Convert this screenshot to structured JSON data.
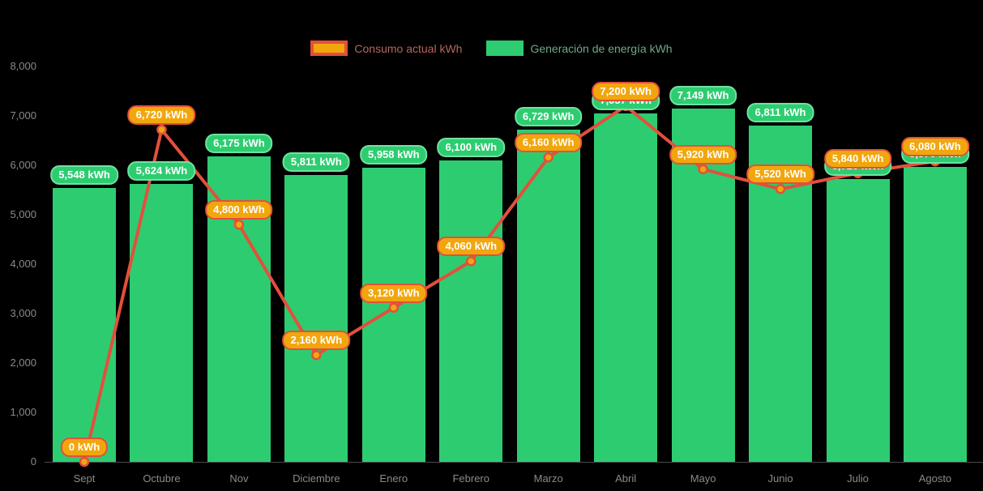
{
  "background": "#000000",
  "axis_text_color": "#8a8a8a",
  "axis_line_color": "#4a4a4a",
  "legend": {
    "items": [
      {
        "label": "Consumo actual kWh",
        "series": "line",
        "swatch_fill": "#f2a60d",
        "swatch_border": "#e2503c",
        "text_color": "#b5675c"
      },
      {
        "label": "Generación de energía kWh",
        "series": "bar",
        "swatch_fill": "#2ecc71",
        "swatch_border": "#2ecc71",
        "text_color": "#6fa987"
      }
    ]
  },
  "chart_data": {
    "type": "bar",
    "title": "",
    "xlabel": "",
    "ylabel": "",
    "ylim": [
      0,
      8000
    ],
    "grid": false,
    "legend_position": "top-center",
    "categories": [
      "Sept",
      "Octubre",
      "Nov",
      "Diciembre",
      "Enero",
      "Febrero",
      "Marzo",
      "Abril",
      "Mayo",
      "Junio",
      "Julio",
      "Agosto"
    ],
    "yticks": [
      {
        "value": 0,
        "label": "0"
      },
      {
        "value": 1000,
        "label": "1,000"
      },
      {
        "value": 2000,
        "label": "2,000"
      },
      {
        "value": 3000,
        "label": "3,000"
      },
      {
        "value": 4000,
        "label": "4,000"
      },
      {
        "value": 5000,
        "label": "5,000"
      },
      {
        "value": 6000,
        "label": "6,000"
      },
      {
        "value": 7000,
        "label": "7,000"
      },
      {
        "value": 8000,
        "label": "8,000"
      }
    ],
    "series": [
      {
        "name": "Generación de energía kWh",
        "kind": "bar",
        "color": "#2ecc71",
        "label_bg": "#2ecc71",
        "label_border": "#6ee3a0",
        "label_text_color": "#ffffff",
        "values": [
          5548,
          5624,
          6175,
          5811,
          5958,
          6100,
          6729,
          7057,
          7149,
          6811,
          5720,
          5970
        ],
        "labels": [
          "5,548 kWh",
          "5,624 kWh",
          "6,175 kWh",
          "5,811 kWh",
          "5,958 kWh",
          "6,100 kWh",
          "6,729 kWh",
          "7,057 kWh",
          "7,149 kWh",
          "6,811 kWh",
          "5,720 kWh",
          "5,970 kWh"
        ]
      },
      {
        "name": "Consumo actual kWh",
        "kind": "line",
        "color": "#e2503c",
        "marker_fill": "#f2a60d",
        "marker_border": "#e2503c",
        "label_bg": "#f2a60d",
        "label_border": "#e2503c",
        "label_text_color": "#ffffff",
        "values": [
          0,
          6720,
          4800,
          2160,
          3120,
          4060,
          6160,
          7200,
          5920,
          5520,
          5840,
          6080
        ],
        "labels": [
          "0 kWh",
          "6,720 kWh",
          "4,800 kWh",
          "2,160 kWh",
          "3,120 kWh",
          "4,060 kWh",
          "6,160 kWh",
          "7,200 kWh",
          "5,920 kWh",
          "5,520 kWh",
          "5,840 kWh",
          "6,080 kWh"
        ]
      }
    ]
  }
}
